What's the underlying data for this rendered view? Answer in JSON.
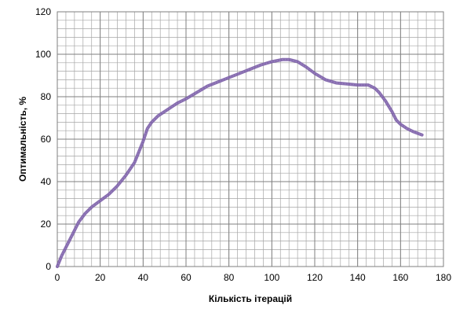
{
  "chart_data": {
    "type": "line",
    "title": "",
    "xlabel": "Кількість ітерацій",
    "ylabel": "Оптимальність, %",
    "xlim": [
      0,
      180
    ],
    "ylim": [
      0,
      120
    ],
    "x_major_ticks": [
      0,
      20,
      40,
      60,
      80,
      100,
      120,
      140,
      160,
      180
    ],
    "y_major_ticks": [
      0,
      20,
      40,
      60,
      80,
      100,
      120
    ],
    "grid": true,
    "series_color": "#7b5ea7",
    "series": [
      {
        "x": [
          0,
          2,
          5,
          8,
          10,
          13,
          16,
          20,
          24,
          28,
          32,
          36,
          38,
          40,
          42,
          44,
          47,
          50,
          53,
          56,
          60,
          65,
          70,
          75,
          80,
          85,
          90,
          95,
          100,
          105,
          108,
          112,
          116,
          120,
          125,
          130,
          135,
          140,
          145,
          148,
          150,
          153,
          156,
          158,
          160,
          163,
          166,
          170
        ],
        "y": [
          0,
          5,
          11,
          17,
          21,
          25,
          28,
          31,
          34,
          38,
          43,
          49,
          54,
          59,
          65,
          68,
          71,
          73,
          75,
          77,
          79,
          82,
          85,
          87,
          89,
          91,
          93,
          95,
          96.5,
          97.5,
          97.5,
          96.5,
          94,
          91,
          88,
          86.5,
          86,
          85.5,
          85.5,
          84,
          82,
          78,
          73,
          69,
          67,
          65,
          63.5,
          62
        ]
      }
    ]
  }
}
